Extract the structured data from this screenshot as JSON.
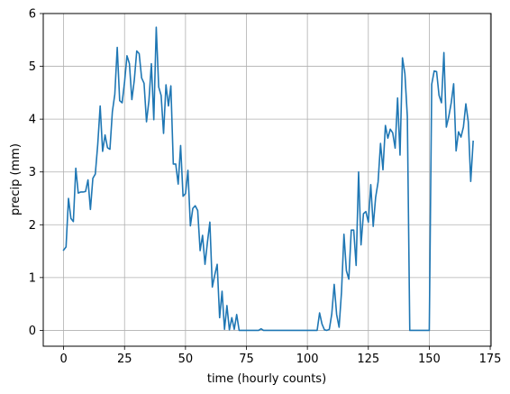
{
  "chart_data": {
    "type": "line",
    "title": "",
    "xlabel": "time (hourly counts)",
    "ylabel": "precip (mm)",
    "xlim": [
      -8.35,
      175.35
    ],
    "ylim": [
      -0.3,
      6.0
    ],
    "x_ticks": [
      0,
      25,
      50,
      75,
      100,
      125,
      150,
      175
    ],
    "y_ticks": [
      0,
      1,
      2,
      3,
      4,
      5,
      6
    ],
    "grid": true,
    "legend": "none",
    "series_color": "#1f77b4",
    "series": [
      {
        "x_start": 0,
        "x_step": 1,
        "values": [
          1.52,
          1.58,
          2.5,
          2.12,
          2.06,
          3.07,
          2.6,
          2.62,
          2.62,
          2.63,
          2.85,
          2.29,
          2.88,
          2.96,
          3.52,
          4.25,
          3.39,
          3.7,
          3.46,
          3.43,
          4.14,
          4.47,
          5.36,
          4.35,
          4.31,
          4.7,
          5.2,
          5.05,
          4.37,
          4.74,
          5.29,
          5.24,
          4.78,
          4.68,
          3.95,
          4.35,
          5.05,
          3.99,
          5.74,
          4.61,
          4.45,
          3.73,
          4.65,
          4.25,
          4.63,
          3.15,
          3.15,
          2.77,
          3.5,
          2.54,
          2.59,
          3.03,
          1.98,
          2.31,
          2.36,
          2.27,
          1.51,
          1.8,
          1.25,
          1.67,
          2.05,
          0.82,
          1.05,
          1.25,
          0.24,
          0.74,
          0.02,
          0.47,
          0.01,
          0.24,
          0.02,
          0.3,
          0.0,
          0.0,
          0.0,
          0.0,
          0.0,
          0.0,
          0.0,
          0.0,
          0.0,
          0.03,
          0.0,
          0.0,
          0.0,
          0.0,
          0.0,
          0.0,
          0.0,
          0.0,
          0.0,
          0.0,
          0.0,
          0.0,
          0.0,
          0.0,
          0.0,
          0.0,
          0.0,
          0.0,
          0.0,
          0.0,
          0.0,
          0.0,
          0.0,
          0.33,
          0.12,
          0.01,
          0.0,
          0.02,
          0.31,
          0.87,
          0.3,
          0.06,
          0.73,
          1.82,
          1.13,
          0.97,
          1.9,
          1.9,
          1.23,
          3.0,
          1.62,
          2.21,
          2.25,
          2.05,
          2.76,
          1.97,
          2.52,
          2.81,
          3.54,
          3.04,
          3.88,
          3.64,
          3.81,
          3.74,
          3.45,
          4.4,
          3.32,
          5.16,
          4.86,
          4.05,
          0.0,
          0.0,
          0.0,
          0.0,
          0.0,
          0.0,
          0.0,
          0.0,
          0.0,
          4.66,
          4.91,
          4.9,
          4.45,
          4.31,
          5.26,
          3.85,
          4.05,
          4.31,
          4.67,
          3.4,
          3.76,
          3.66,
          3.85,
          4.29,
          3.95,
          2.82,
          3.58
        ]
      }
    ]
  }
}
